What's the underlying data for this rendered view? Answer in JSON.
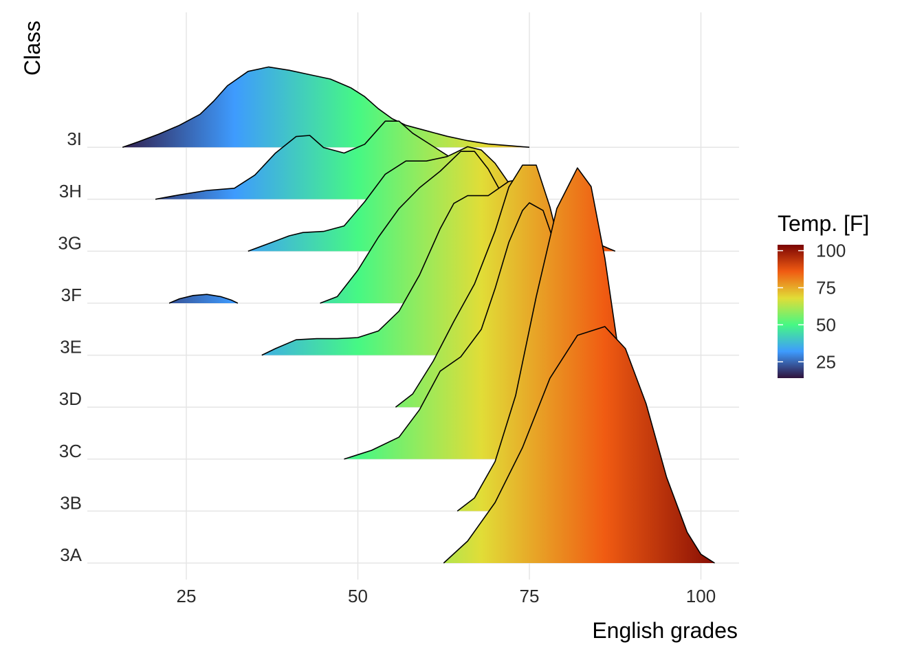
{
  "chart_data": {
    "type": "ridgeline",
    "xlabel": "English grades",
    "ylabel": "Class",
    "xlim": [
      10,
      105
    ],
    "x_ticks": [
      25,
      50,
      75,
      100
    ],
    "grid": true,
    "legend": {
      "title": "Temp. [F]",
      "placement": "right",
      "ticks": [
        25,
        50,
        75,
        100
      ],
      "range": [
        14,
        104
      ],
      "colormap": [
        "#30123b",
        "#3e9bfe",
        "#46f884",
        "#e1dd37",
        "#f05b12",
        "#7a0403"
      ]
    },
    "series": [
      {
        "name": "3I",
        "density": [
          [
            15.7,
            0.0
          ],
          [
            18,
            0.05
          ],
          [
            21,
            0.12
          ],
          [
            24,
            0.2
          ],
          [
            27,
            0.3
          ],
          [
            29,
            0.42
          ],
          [
            31,
            0.56
          ],
          [
            34,
            0.69
          ],
          [
            37,
            0.73
          ],
          [
            40,
            0.7
          ],
          [
            43,
            0.66
          ],
          [
            46,
            0.62
          ],
          [
            49,
            0.54
          ],
          [
            51,
            0.46
          ],
          [
            53,
            0.35
          ],
          [
            55,
            0.26
          ],
          [
            57,
            0.2
          ],
          [
            60,
            0.15
          ],
          [
            63,
            0.1
          ],
          [
            66,
            0.06
          ],
          [
            69,
            0.03
          ],
          [
            72,
            0.015
          ],
          [
            75,
            0.0
          ]
        ]
      },
      {
        "name": "3H",
        "density": [
          [
            20.5,
            0.0
          ],
          [
            24,
            0.04
          ],
          [
            28,
            0.08
          ],
          [
            32,
            0.1
          ],
          [
            35,
            0.22
          ],
          [
            38,
            0.42
          ],
          [
            41,
            0.57
          ],
          [
            43,
            0.58
          ],
          [
            45,
            0.47
          ],
          [
            48,
            0.42
          ],
          [
            51,
            0.5
          ],
          [
            54,
            0.71
          ],
          [
            56,
            0.71
          ],
          [
            58,
            0.6
          ],
          [
            61,
            0.48
          ],
          [
            64,
            0.36
          ],
          [
            67,
            0.27
          ],
          [
            70,
            0.2
          ],
          [
            72,
            0.14
          ],
          [
            74,
            0.06
          ],
          [
            75,
            0.05
          ],
          [
            76,
            0.0
          ]
        ]
      },
      {
        "name": "3G",
        "density": [
          [
            34,
            0.0
          ],
          [
            37,
            0.07
          ],
          [
            40,
            0.14
          ],
          [
            42,
            0.17
          ],
          [
            45,
            0.18
          ],
          [
            48,
            0.23
          ],
          [
            51,
            0.45
          ],
          [
            54,
            0.7
          ],
          [
            57,
            0.82
          ],
          [
            60,
            0.82
          ],
          [
            63,
            0.86
          ],
          [
            66,
            0.95
          ],
          [
            68,
            0.92
          ],
          [
            70,
            0.8
          ],
          [
            72,
            0.62
          ],
          [
            74,
            0.42
          ],
          [
            77,
            0.25
          ],
          [
            80,
            0.17
          ],
          [
            83,
            0.12
          ],
          [
            86,
            0.04
          ],
          [
            87.5,
            0.0
          ]
        ]
      },
      {
        "name": "3F",
        "density": [
          [
            22.5,
            0.0
          ],
          [
            24,
            0.04
          ],
          [
            26,
            0.07
          ],
          [
            28,
            0.08
          ],
          [
            30,
            0.06
          ],
          [
            31.5,
            0.03
          ],
          [
            32.5,
            0.0
          ]
        ]
      },
      {
        "name": "3F",
        "density": [
          [
            44.5,
            0.0
          ],
          [
            47,
            0.06
          ],
          [
            50,
            0.3
          ],
          [
            53,
            0.6
          ],
          [
            56,
            0.86
          ],
          [
            59,
            1.05
          ],
          [
            62,
            1.2
          ],
          [
            65,
            1.38
          ],
          [
            67,
            1.38
          ],
          [
            69,
            1.22
          ],
          [
            72,
            0.88
          ],
          [
            75,
            0.56
          ],
          [
            78,
            0.28
          ],
          [
            81,
            0.1
          ],
          [
            84,
            0.04
          ],
          [
            86,
            0.0
          ]
        ]
      },
      {
        "name": "3E",
        "density": [
          [
            36,
            0.0
          ],
          [
            38,
            0.06
          ],
          [
            41,
            0.14
          ],
          [
            44,
            0.15
          ],
          [
            47,
            0.15
          ],
          [
            50,
            0.16
          ],
          [
            53,
            0.22
          ],
          [
            56,
            0.4
          ],
          [
            59,
            0.73
          ],
          [
            62,
            1.15
          ],
          [
            64,
            1.38
          ],
          [
            66,
            1.45
          ],
          [
            69,
            1.45
          ],
          [
            72,
            1.58
          ],
          [
            74,
            1.6
          ],
          [
            76,
            1.45
          ],
          [
            79,
            1.0
          ],
          [
            82,
            0.48
          ],
          [
            85,
            0.15
          ],
          [
            88,
            0.0
          ]
        ]
      },
      {
        "name": "3D",
        "density": [
          [
            55.5,
            0.0
          ],
          [
            58,
            0.12
          ],
          [
            61,
            0.42
          ],
          [
            64,
            0.78
          ],
          [
            67,
            1.12
          ],
          [
            70,
            1.6
          ],
          [
            72,
            2.0
          ],
          [
            74,
            2.2
          ],
          [
            76,
            2.2
          ],
          [
            78,
            1.82
          ],
          [
            80,
            1.32
          ],
          [
            83,
            0.65
          ],
          [
            86,
            0.2
          ],
          [
            89,
            0.04
          ],
          [
            91,
            0.0
          ]
        ]
      },
      {
        "name": "3C",
        "density": [
          [
            48,
            0.0
          ],
          [
            52,
            0.08
          ],
          [
            56,
            0.2
          ],
          [
            59,
            0.45
          ],
          [
            62,
            0.8
          ],
          [
            65,
            0.93
          ],
          [
            68,
            1.18
          ],
          [
            70,
            1.55
          ],
          [
            72,
            1.97
          ],
          [
            74,
            2.26
          ],
          [
            75,
            2.33
          ],
          [
            77,
            2.26
          ],
          [
            79,
            1.9
          ],
          [
            82,
            1.25
          ],
          [
            85,
            0.55
          ],
          [
            88,
            0.15
          ],
          [
            90,
            0.0
          ]
        ]
      },
      {
        "name": "3B",
        "density": [
          [
            64.5,
            0.0
          ],
          [
            67,
            0.12
          ],
          [
            70,
            0.45
          ],
          [
            73,
            1.05
          ],
          [
            76,
            1.95
          ],
          [
            79,
            2.75
          ],
          [
            82,
            3.12
          ],
          [
            84,
            2.95
          ],
          [
            86,
            2.3
          ],
          [
            88,
            1.45
          ],
          [
            90,
            0.62
          ],
          [
            93,
            0.08
          ],
          [
            95,
            0.0
          ]
        ]
      },
      {
        "name": "3A",
        "density": [
          [
            62.5,
            0.0
          ],
          [
            66,
            0.2
          ],
          [
            70,
            0.55
          ],
          [
            74,
            1.05
          ],
          [
            78,
            1.68
          ],
          [
            82,
            2.07
          ],
          [
            86,
            2.15
          ],
          [
            89,
            1.95
          ],
          [
            92,
            1.45
          ],
          [
            95,
            0.78
          ],
          [
            98,
            0.28
          ],
          [
            100,
            0.08
          ],
          [
            102,
            0.0
          ]
        ]
      }
    ]
  }
}
